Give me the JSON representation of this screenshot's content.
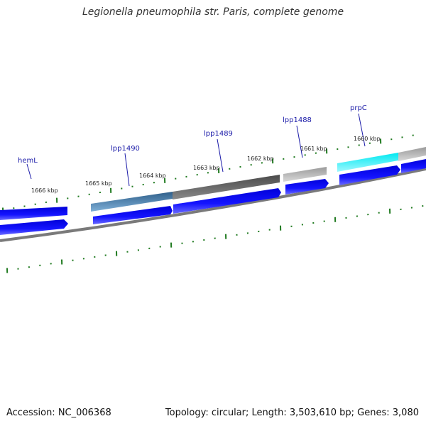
{
  "title": "Legionella pneumophila str. Paris, complete genome",
  "footer": {
    "accession": "Accession: NC_006368",
    "summary": "Topology: circular; Length: 3,503,610 bp; Genes: 3,080"
  },
  "colors": {
    "cds": "#0a0aee",
    "backbone": "#7a7a7a",
    "tick": "#1f7a1f",
    "label": "#1a1aa8"
  },
  "scale_labels": [
    "1666 kbp",
    "1665 kbp",
    "1664 kbp",
    "1663 kbp",
    "1662 kbp",
    "1661 kbp",
    "1660 kbp"
  ],
  "gene_labels": [
    "hemL",
    "lpp1490",
    "lpp1489",
    "lpp1488",
    "prpC"
  ],
  "icons": []
}
